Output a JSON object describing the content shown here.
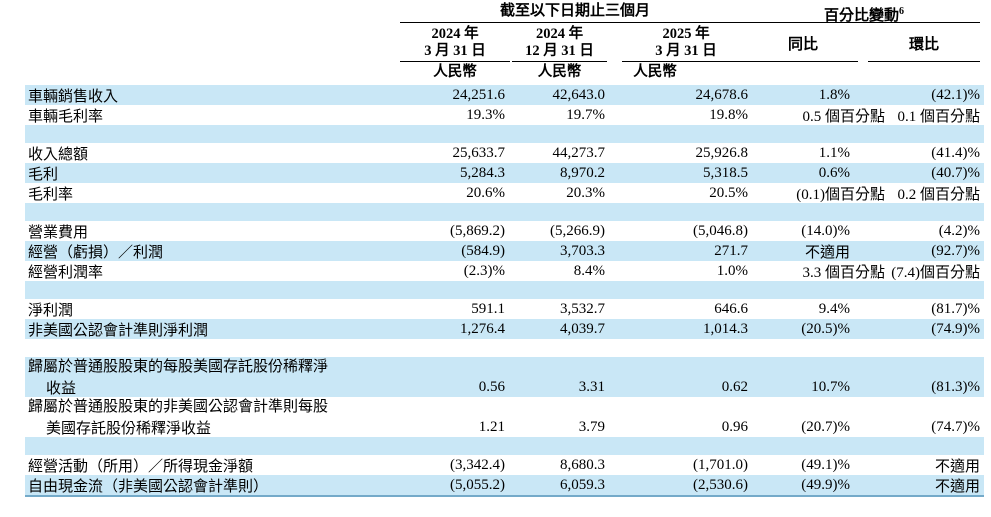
{
  "colors": {
    "row_highlight": "#c9e7f6",
    "last_row_edge": "#74aac9",
    "text": "#000000"
  },
  "table": {
    "header": {
      "period_group": "截至以下日期止三個月",
      "pct_group": "百分比變動",
      "pct_group_superscript": "6",
      "date_columns": [
        {
          "line1": "2024 年",
          "line2": "3 月 31 日"
        },
        {
          "line1": "2024 年",
          "line2": "12 月 31 日"
        },
        {
          "line1": "2025 年",
          "line2": "3 月 31 日"
        }
      ],
      "currency_label": "人民幣",
      "yoy_label": "同比",
      "qoq_label": "環比"
    },
    "rows": [
      {
        "label": "車輛銷售收入",
        "values": [
          "24,251.6",
          "42,643.0",
          "24,678.6",
          "1.8%",
          "(42.1)%"
        ]
      },
      {
        "label": "車輛毛利率",
        "values": [
          "19.3%",
          "19.7%",
          "19.8%",
          "0.5 個百分點",
          "0.1 個百分點"
        ]
      },
      {
        "spacer": true
      },
      {
        "label": "收入總額",
        "values": [
          "25,633.7",
          "44,273.7",
          "25,926.8",
          "1.1%",
          "(41.4)%"
        ]
      },
      {
        "label": "毛利",
        "values": [
          "5,284.3",
          "8,970.2",
          "5,318.5",
          "0.6%",
          "(40.7)%"
        ]
      },
      {
        "label": "毛利率",
        "values": [
          "20.6%",
          "20.3%",
          "20.5%",
          "(0.1)個百分點",
          "0.2 個百分點"
        ]
      },
      {
        "spacer": true
      },
      {
        "label": "營業費用",
        "values": [
          "(5,869.2)",
          "(5,266.9)",
          "(5,046.8)",
          "(14.0)%",
          "(4.2)%"
        ]
      },
      {
        "label": "經營（虧損）／利潤",
        "values": [
          "(584.9)",
          "3,703.3",
          "271.7",
          "不適用",
          "(92.7)%"
        ]
      },
      {
        "label": "經營利潤率",
        "values": [
          "(2.3)%",
          "8.4%",
          "1.0%",
          "3.3 個百分點",
          "(7.4)個百分點"
        ]
      },
      {
        "spacer": true
      },
      {
        "label": "淨利潤",
        "values": [
          "591.1",
          "3,532.7",
          "646.6",
          "9.4%",
          "(81.7)%"
        ]
      },
      {
        "label": "非美國公認會計準則淨利潤",
        "values": [
          "1,276.4",
          "4,039.7",
          "1,014.3",
          "(20.5)%",
          "(74.9)%"
        ]
      },
      {
        "spacer": true
      },
      {
        "label": "歸屬於普通股股東的每股美國存託股份稀釋淨",
        "label2": "收益",
        "values": [
          "0.56",
          "3.31",
          "0.62",
          "10.7%",
          "(81.3)%"
        ]
      },
      {
        "label": "歸屬於普通股股東的非美國公認會計準則每股",
        "label2": "美國存託股份稀釋淨收益",
        "values": [
          "1.21",
          "3.79",
          "0.96",
          "(20.7)%",
          "(74.7)%"
        ]
      },
      {
        "spacer": true
      },
      {
        "label": "經營活動（所用）／所得現金淨額",
        "values": [
          "(3,342.4)",
          "8,680.3",
          "(1,701.0)",
          "(49.1)%",
          "不適用"
        ]
      },
      {
        "label": "自由現金流（非美國公認會計準則）",
        "values": [
          "(5,055.2)",
          "6,059.3",
          "(2,530.6)",
          "(49.9)%",
          "不適用"
        ]
      }
    ]
  }
}
